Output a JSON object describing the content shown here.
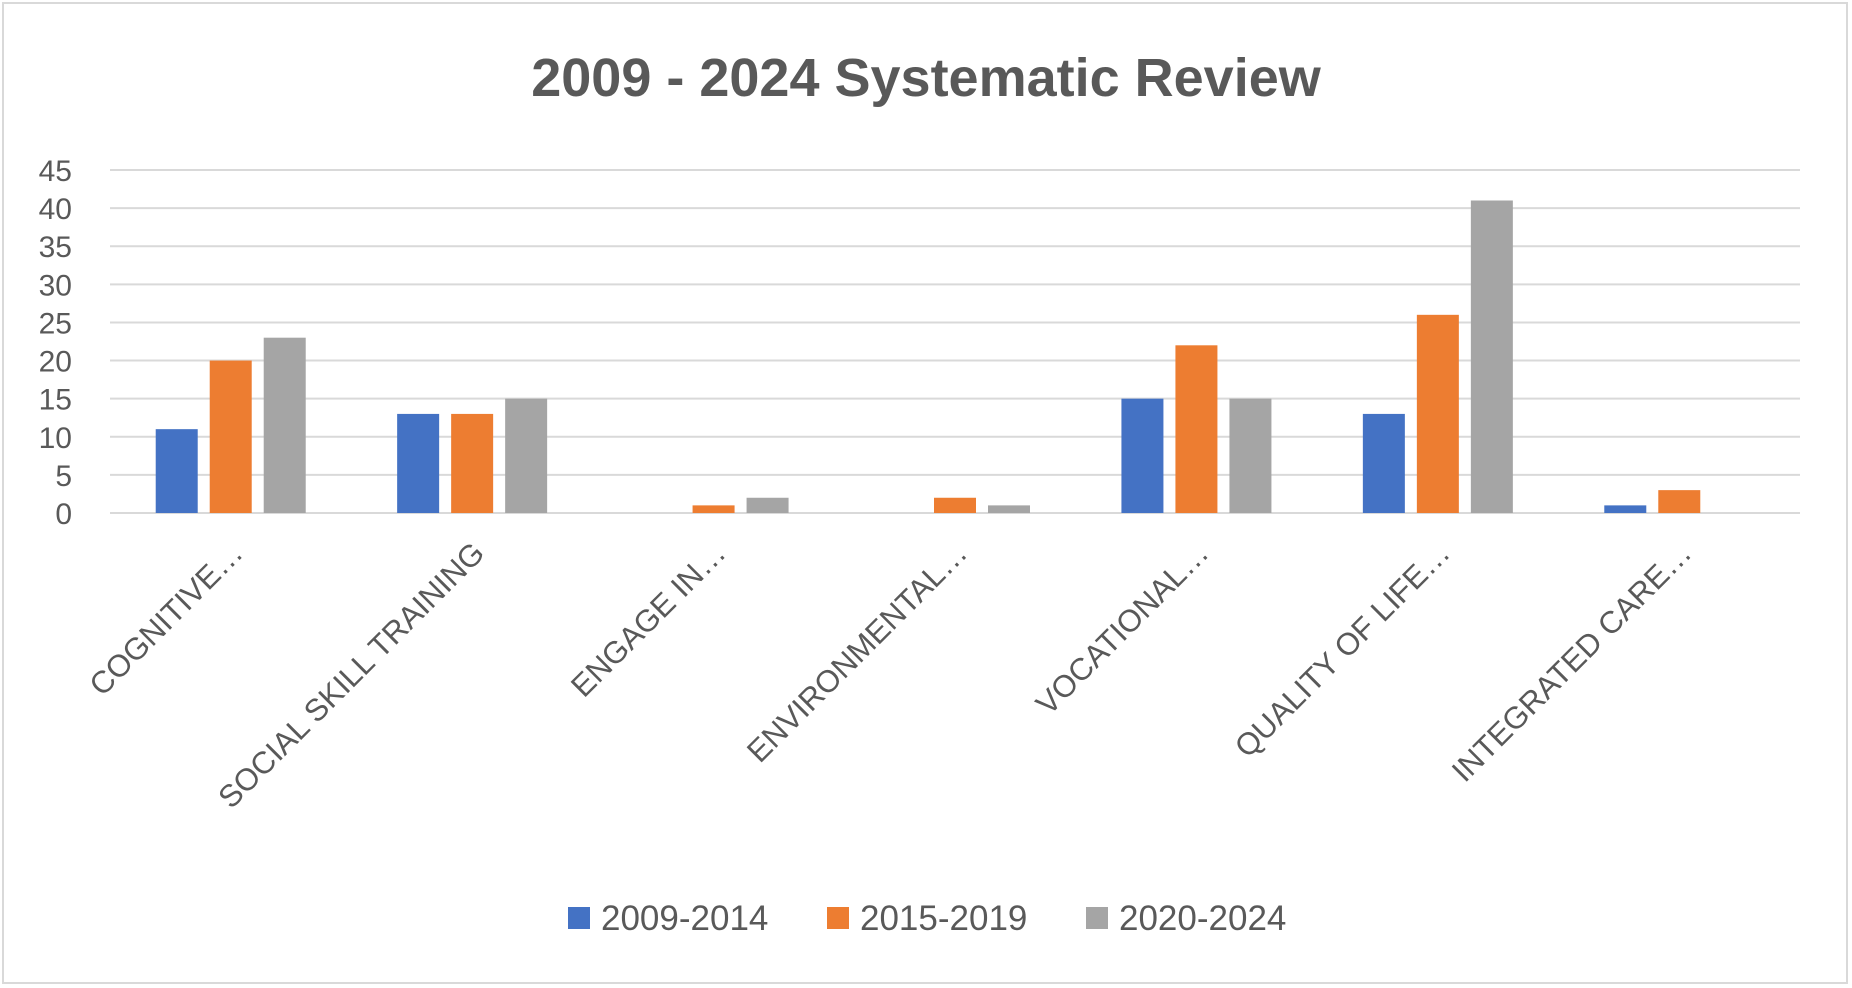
{
  "chart_data": {
    "type": "bar",
    "title": "2009 -  2024 Systematic Review",
    "categories": [
      "COGNITIVE…",
      "SOCIAL SKILL TRAINING",
      "ENGAGE IN…",
      "ENVIRONMENTAL…",
      "VOCATIONAL…",
      "QUALITY OF LIFE…",
      "INTEGRATED CARE…"
    ],
    "series": [
      {
        "name": "2009-2014",
        "color": "#4472C4",
        "values": [
          11,
          13,
          0,
          0,
          15,
          13,
          1
        ]
      },
      {
        "name": "2015-2019",
        "color": "#ED7D31",
        "values": [
          20,
          13,
          1,
          2,
          22,
          26,
          3
        ]
      },
      {
        "name": "2020-2024",
        "color": "#A5A5A5",
        "values": [
          23,
          15,
          2,
          1,
          15,
          41,
          0
        ]
      }
    ],
    "ylim": [
      0,
      45
    ],
    "yticks": [
      "0",
      "5",
      "10",
      "15",
      "20",
      "25",
      "30",
      "35",
      "40",
      "45"
    ],
    "xlabel": "",
    "ylabel": "",
    "grid": true,
    "legend": "bottom"
  }
}
